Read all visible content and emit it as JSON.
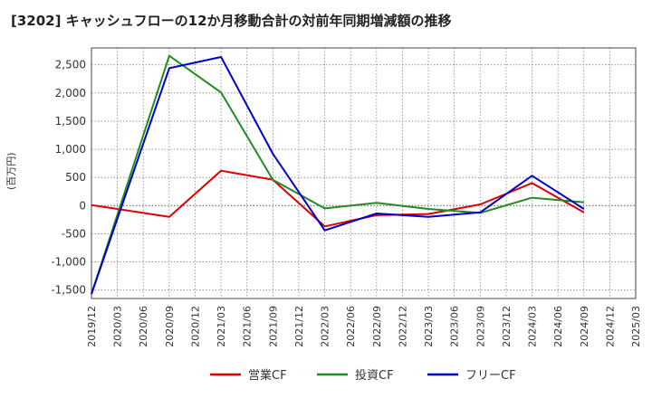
{
  "chart_data": {
    "type": "line",
    "title": "[3202]  キャッシュフローの12か月移動合計の対前年同期増減額の推移",
    "ylabel": "(百万円)",
    "ylim": [
      -1650,
      2800
    ],
    "yticks": [
      -1500,
      -1000,
      -500,
      0,
      500,
      1000,
      1500,
      2000,
      2500
    ],
    "ytick_labels": [
      "-1,500",
      "-1,000",
      "-500",
      "0",
      "500",
      "1,000",
      "1,500",
      "2,000",
      "2,500"
    ],
    "x": [
      "2019/12",
      "2020/03",
      "2020/06",
      "2020/09",
      "2020/12",
      "2021/03",
      "2021/06",
      "2021/09",
      "2021/12",
      "2022/03",
      "2022/06",
      "2022/09",
      "2022/12",
      "2023/03",
      "2023/06",
      "2023/09",
      "2023/12",
      "2024/03",
      "2024/06",
      "2024/09",
      "2024/12",
      "2025/03"
    ],
    "grid": true,
    "legend": "bottom",
    "series": [
      {
        "name": "営業CF",
        "color": "#dd0000",
        "values": [
          10,
          null,
          null,
          -200,
          null,
          620,
          null,
          460,
          null,
          -370,
          null,
          -170,
          null,
          -150,
          null,
          20,
          null,
          400,
          null,
          -120,
          null,
          null
        ]
      },
      {
        "name": "投資CF",
        "color": "#228b22",
        "values": [
          -1570,
          null,
          null,
          2660,
          null,
          2010,
          null,
          460,
          null,
          -50,
          null,
          50,
          null,
          -60,
          null,
          -130,
          null,
          140,
          null,
          60,
          null,
          null
        ]
      },
      {
        "name": "フリーCF",
        "color": "#0000cc",
        "values": [
          -1570,
          null,
          null,
          2440,
          null,
          2640,
          null,
          920,
          null,
          -440,
          null,
          -140,
          null,
          -200,
          null,
          -120,
          null,
          530,
          null,
          -60,
          null,
          null
        ]
      }
    ]
  }
}
